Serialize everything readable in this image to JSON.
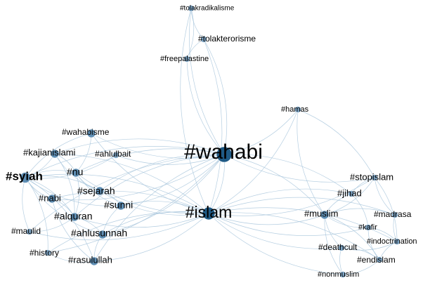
{
  "colors": {
    "edge": "#a8c6dc",
    "node_small": "#7fa6c6",
    "node_medium": "#5f8fb5",
    "node_hub": "#1f5a85",
    "label": "#000000"
  },
  "nodes": [
    {
      "id": "wahabi",
      "label": "#wahabi",
      "degree": 5
    },
    {
      "id": "islam",
      "label": "#islam",
      "degree": 4
    },
    {
      "id": "syiah",
      "label": "#syiah",
      "degree": 3
    },
    {
      "id": "tolakradikalisme",
      "label": "#tolakradikalisme",
      "degree": 1
    },
    {
      "id": "tolakterorisme",
      "label": "#tolakterorisme",
      "degree": 1
    },
    {
      "id": "freepalastine",
      "label": "#freepalastine",
      "degree": 1
    },
    {
      "id": "hamas",
      "label": "#hamas",
      "degree": 1
    },
    {
      "id": "wahabisme",
      "label": "#wahabisme",
      "degree": 2
    },
    {
      "id": "kajianislami",
      "label": "#kajianislami",
      "degree": 2
    },
    {
      "id": "ahlulbait",
      "label": "#ahlulbait",
      "degree": 1
    },
    {
      "id": "nu",
      "label": "#nu",
      "degree": 2
    },
    {
      "id": "nabi",
      "label": "#nabi",
      "degree": 2
    },
    {
      "id": "sejarah",
      "label": "#sejarah",
      "degree": 2
    },
    {
      "id": "sunni",
      "label": "#sunni",
      "degree": 2
    },
    {
      "id": "alquran",
      "label": "#alquran",
      "degree": 2
    },
    {
      "id": "ahlusunnah",
      "label": "#ahlusunnah",
      "degree": 2
    },
    {
      "id": "maulid",
      "label": "#maulid",
      "degree": 1
    },
    {
      "id": "history",
      "label": "#history",
      "degree": 1
    },
    {
      "id": "rasulullah",
      "label": "#rasulullah",
      "degree": 2
    },
    {
      "id": "stopislam",
      "label": "#stopislam",
      "degree": 1
    },
    {
      "id": "jihad",
      "label": "#jihad",
      "degree": 1
    },
    {
      "id": "muslim",
      "label": "#muslim",
      "degree": 2
    },
    {
      "id": "madrasa",
      "label": "#madrasa",
      "degree": 1
    },
    {
      "id": "kafir",
      "label": "#kafir",
      "degree": 1
    },
    {
      "id": "indoctrination",
      "label": "#indoctrination",
      "degree": 1
    },
    {
      "id": "deathcult",
      "label": "#deathcult",
      "degree": 1
    },
    {
      "id": "endislam",
      "label": "#endislam",
      "degree": 1
    },
    {
      "id": "nonmuslim",
      "label": "#nonmuslim",
      "degree": 1
    }
  ],
  "edges": [
    [
      "wahabi",
      "tolakradikalisme"
    ],
    [
      "wahabi",
      "tolakterorisme"
    ],
    [
      "wahabi",
      "freepalastine"
    ],
    [
      "wahabi",
      "hamas"
    ],
    [
      "wahabi",
      "islam"
    ],
    [
      "wahabi",
      "syiah"
    ],
    [
      "wahabi",
      "wahabisme"
    ],
    [
      "wahabi",
      "kajianislami"
    ],
    [
      "wahabi",
      "ahlulbait"
    ],
    [
      "wahabi",
      "nu"
    ],
    [
      "wahabi",
      "nabi"
    ],
    [
      "wahabi",
      "sejarah"
    ],
    [
      "wahabi",
      "sunni"
    ],
    [
      "wahabi",
      "alquran"
    ],
    [
      "wahabi",
      "ahlusunnah"
    ],
    [
      "wahabi",
      "rasulullah"
    ],
    [
      "wahabi",
      "muslim"
    ],
    [
      "wahabi",
      "stopislam"
    ],
    [
      "wahabi",
      "jihad"
    ],
    [
      "wahabi",
      "maulid"
    ],
    [
      "wahabi",
      "history"
    ],
    [
      "tolakradikalisme",
      "tolakterorisme"
    ],
    [
      "tolakradikalisme",
      "freepalastine"
    ],
    [
      "tolakterorisme",
      "freepalastine"
    ],
    [
      "tolakterorisme",
      "islam"
    ],
    [
      "tolakradikalisme",
      "islam"
    ],
    [
      "hamas",
      "islam"
    ],
    [
      "hamas",
      "muslim"
    ],
    [
      "hamas",
      "stopislam"
    ],
    [
      "islam",
      "syiah"
    ],
    [
      "islam",
      "wahabisme"
    ],
    [
      "islam",
      "kajianislami"
    ],
    [
      "islam",
      "nu"
    ],
    [
      "islam",
      "nabi"
    ],
    [
      "islam",
      "sejarah"
    ],
    [
      "islam",
      "sunni"
    ],
    [
      "islam",
      "alquran"
    ],
    [
      "islam",
      "ahlusunnah"
    ],
    [
      "islam",
      "maulid"
    ],
    [
      "islam",
      "history"
    ],
    [
      "islam",
      "rasulullah"
    ],
    [
      "islam",
      "stopislam"
    ],
    [
      "islam",
      "jihad"
    ],
    [
      "islam",
      "muslim"
    ],
    [
      "islam",
      "madrasa"
    ],
    [
      "islam",
      "kafir"
    ],
    [
      "islam",
      "indoctrination"
    ],
    [
      "islam",
      "deathcult"
    ],
    [
      "islam",
      "endislam"
    ],
    [
      "islam",
      "nonmuslim"
    ],
    [
      "syiah",
      "wahabisme"
    ],
    [
      "syiah",
      "kajianislami"
    ],
    [
      "syiah",
      "nu"
    ],
    [
      "syiah",
      "nabi"
    ],
    [
      "syiah",
      "sejarah"
    ],
    [
      "syiah",
      "sunni"
    ],
    [
      "syiah",
      "alquran"
    ],
    [
      "syiah",
      "maulid"
    ],
    [
      "syiah",
      "history"
    ],
    [
      "syiah",
      "ahlulbait"
    ],
    [
      "syiah",
      "rasulullah"
    ],
    [
      "syiah",
      "ahlusunnah"
    ],
    [
      "kajianislami",
      "nu"
    ],
    [
      "kajianislami",
      "sejarah"
    ],
    [
      "kajianislami",
      "alquran"
    ],
    [
      "nu",
      "sejarah"
    ],
    [
      "nu",
      "alquran"
    ],
    [
      "nu",
      "sunni"
    ],
    [
      "nabi",
      "alquran"
    ],
    [
      "nabi",
      "rasulullah"
    ],
    [
      "sejarah",
      "sunni"
    ],
    [
      "sunni",
      "ahlusunnah"
    ],
    [
      "alquran",
      "ahlusunnah"
    ],
    [
      "ahlusunnah",
      "rasulullah"
    ],
    [
      "rasulullah",
      "history"
    ],
    [
      "maulid",
      "alquran"
    ],
    [
      "wahabisme",
      "nu"
    ],
    [
      "stopislam",
      "jihad"
    ],
    [
      "stopislam",
      "muslim"
    ],
    [
      "stopislam",
      "madrasa"
    ],
    [
      "stopislam",
      "indoctrination"
    ],
    [
      "jihad",
      "muslim"
    ],
    [
      "jihad",
      "kafir"
    ],
    [
      "muslim",
      "kafir"
    ],
    [
      "muslim",
      "madrasa"
    ],
    [
      "muslim",
      "deathcult"
    ],
    [
      "muslim",
      "endislam"
    ],
    [
      "muslim",
      "nonmuslim"
    ],
    [
      "kafir",
      "indoctrination"
    ],
    [
      "kafir",
      "endislam"
    ],
    [
      "indoctrination",
      "deathcult"
    ],
    [
      "indoctrination",
      "endislam"
    ],
    [
      "deathcult",
      "endislam"
    ],
    [
      "deathcult",
      "nonmuslim"
    ],
    [
      "endislam",
      "nonmuslim"
    ],
    [
      "madrasa",
      "indoctrination"
    ]
  ]
}
